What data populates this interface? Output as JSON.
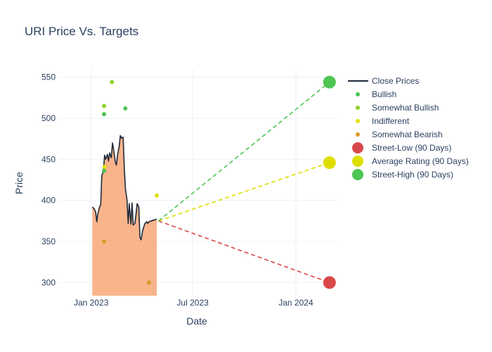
{
  "chart_data": {
    "type": "line",
    "title": "URI Price Vs. Targets",
    "xlabel": "Date",
    "ylabel": "Price",
    "xlim": [
      "2022-11-06",
      "2024-03-15"
    ],
    "ylim": [
      284,
      560
    ],
    "x_ticks": [
      {
        "date": "2023-01-01",
        "label": "Jan 2023"
      },
      {
        "date": "2023-07-01",
        "label": "Jul 2023"
      },
      {
        "date": "2024-01-01",
        "label": "Jan 2024"
      }
    ],
    "y_ticks": [
      300,
      350,
      400,
      450,
      500,
      550
    ],
    "grid": true,
    "legend_position": "right",
    "close_prices": {
      "name": "Close Prices",
      "color": "#1f2a3a",
      "fill_color": "#f9b48c",
      "x": [
        "2023-01-03",
        "2023-01-06",
        "2023-01-09",
        "2023-01-11",
        "2023-01-13",
        "2023-01-16",
        "2023-01-18",
        "2023-01-20",
        "2023-01-23",
        "2023-01-25",
        "2023-01-27",
        "2023-01-30",
        "2023-02-01",
        "2023-02-03",
        "2023-02-06",
        "2023-02-08",
        "2023-02-10",
        "2023-02-13",
        "2023-02-15",
        "2023-02-17",
        "2023-02-20",
        "2023-02-22",
        "2023-02-24",
        "2023-02-27",
        "2023-03-01",
        "2023-03-03",
        "2023-03-06",
        "2023-03-08",
        "2023-03-10",
        "2023-03-13",
        "2023-03-15",
        "2023-03-17",
        "2023-03-20",
        "2023-03-22",
        "2023-03-24",
        "2023-03-27",
        "2023-03-29",
        "2023-03-31",
        "2023-04-03",
        "2023-04-05",
        "2023-04-07",
        "2023-04-10",
        "2023-04-12",
        "2023-04-14",
        "2023-04-17",
        "2023-04-19",
        "2023-04-21",
        "2023-04-24",
        "2023-04-26",
        "2023-04-28"
      ],
      "y": [
        392,
        390,
        386,
        374,
        384,
        392,
        395,
        430,
        436,
        455,
        450,
        456,
        448,
        458,
        452,
        470,
        462,
        447,
        443,
        455,
        466,
        479,
        476,
        477,
        440,
        415,
        400,
        372,
        396,
        371,
        397,
        370,
        372,
        383,
        396,
        392,
        355,
        352,
        364,
        368,
        372,
        374,
        372,
        374,
        375,
        375,
        376,
        376,
        377,
        377
      ]
    },
    "ratings": [
      {
        "name": "Bullish",
        "color": "#4cc552",
        "points": [
          {
            "x": "2023-01-24",
            "y": 436
          },
          {
            "x": "2023-01-24",
            "y": 505
          },
          {
            "x": "2023-03-03",
            "y": 512
          }
        ]
      },
      {
        "name": "Somewhat Bullish",
        "color": "#8fd12a",
        "points": [
          {
            "x": "2023-01-24",
            "y": 515
          },
          {
            "x": "2023-02-07",
            "y": 544
          }
        ]
      },
      {
        "name": "Indifferent",
        "color": "#e2e200",
        "points": [
          {
            "x": "2023-01-25",
            "y": 441
          },
          {
            "x": "2023-04-28",
            "y": 406
          }
        ]
      },
      {
        "name": "Somewhat Bearish",
        "color": "#d99b27",
        "points": [
          {
            "x": "2023-01-24",
            "y": 350
          },
          {
            "x": "2023-04-14",
            "y": 300
          }
        ]
      }
    ],
    "targets": [
      {
        "name": "Street-Low (90 Days)",
        "color": "#d94848",
        "value": 300
      },
      {
        "name": "Average Rating (90 Days)",
        "color": "#dede00",
        "value": 446
      },
      {
        "name": "Street-High (90 Days)",
        "color": "#4cc552",
        "value": 544
      }
    ],
    "target_start": {
      "x": "2023-05-01",
      "y": 375
    },
    "target_date": "2024-03-01"
  }
}
